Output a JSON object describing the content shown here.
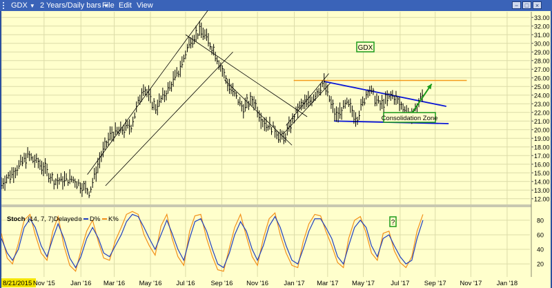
{
  "window": {
    "symbol": "GDX",
    "period": "2 Years/Daily bars",
    "menu": [
      "File",
      "Edit",
      "View"
    ],
    "buttons": [
      "minimize",
      "maximize",
      "close"
    ]
  },
  "stoch": {
    "label": "Stoch",
    "params": "(14, 7, 7)",
    "mode": "Delayed",
    "d_label": "D%",
    "k_label": "K%"
  },
  "annotations": {
    "gdx_label": "GDX",
    "consolidation_label": "Consolidation Zone",
    "question_label": "?"
  },
  "colors": {
    "background": "#ffffcc",
    "price": "#000000",
    "d_line": "#1e3fbf",
    "k_line": "#f29019",
    "wedge": "#0a16d6",
    "resistance": "#f39a1a",
    "arrow": "#1a9a1a",
    "label_border": "#1a9a1a"
  },
  "chart_data": [
    {
      "type": "line",
      "title": "",
      "series": [
        {
          "x": [
            "2015-08-21",
            "2015-09-15",
            "2015-10-05",
            "2015-10-30",
            "2015-11-20",
            "2015-12-20",
            "2016-01-19",
            "2016-02-05",
            "2016-02-24",
            "2016-03-10",
            "2016-03-30",
            "2016-04-20",
            "2016-05-10",
            "2016-05-31",
            "2016-06-20",
            "2016-07-10",
            "2016-07-29",
            "2016-08-20",
            "2016-09-10",
            "2016-10-07",
            "2016-10-25",
            "2016-11-10",
            "2016-12-01",
            "2016-12-15",
            "2017-01-10",
            "2017-02-01",
            "2017-02-22",
            "2017-03-15",
            "2017-04-04",
            "2017-04-20",
            "2017-05-10",
            "2017-05-30",
            "2017-06-20",
            "2017-07-10",
            "2017-07-25",
            "2017-08-11"
          ],
          "values": [
            13.8,
            15.4,
            17.0,
            15.8,
            14.0,
            14.3,
            12.8,
            16.5,
            19.5,
            19.8,
            20.5,
            25.0,
            22.5,
            24.5,
            26.8,
            30.5,
            31.5,
            29.0,
            25.5,
            22.5,
            23.5,
            21.0,
            20.0,
            18.8,
            22.5,
            23.5,
            25.5,
            21.5,
            23.0,
            21.3,
            24.8,
            22.8,
            24.0,
            22.3,
            21.5,
            24.3
          ]
        }
      ],
      "xticks": [
        "8/21/2015",
        "Nov '15",
        "Jan '16",
        "Mar '16",
        "May '16",
        "Jul '16",
        "Sep '16",
        "Nov '16",
        "Jan '17",
        "Mar '17",
        "May '17",
        "Jul '17",
        "Sep '17",
        "Nov '17",
        "Jan '18"
      ],
      "yticks": [
        12.0,
        13.0,
        14.0,
        15.0,
        16.0,
        17.0,
        18.0,
        19.0,
        20.0,
        21.0,
        22.0,
        23.0,
        24.0,
        25.0,
        26.0,
        27.0,
        28.0,
        29.0,
        30.0,
        31.0,
        32.0,
        33.0
      ],
      "ylim": [
        11.5,
        33.5
      ],
      "xlim": [
        "2015-08-21",
        "2018-02-10"
      ],
      "resistance_level": 25.7,
      "grid": true
    },
    {
      "type": "line",
      "title": "",
      "series": [
        {
          "name": "D%",
          "values": [
            55,
            35,
            25,
            40,
            70,
            82,
            70,
            45,
            30,
            55,
            75,
            55,
            28,
            15,
            30,
            55,
            70,
            55,
            35,
            30,
            45,
            60,
            78,
            88,
            85,
            70,
            55,
            40,
            60,
            80,
            62,
            40,
            25,
            55,
            78,
            82,
            65,
            40,
            20,
            15,
            35,
            60,
            78,
            65,
            40,
            25,
            45,
            72,
            85,
            70,
            45,
            25,
            20,
            40,
            65,
            82,
            82,
            70,
            55,
            30,
            20,
            45,
            70,
            80,
            70,
            45,
            30,
            55,
            60,
            45,
            30,
            20,
            25,
            55,
            80
          ]
        },
        {
          "name": "K%",
          "values": [
            62,
            28,
            20,
            48,
            80,
            88,
            60,
            35,
            25,
            65,
            85,
            45,
            18,
            10,
            38,
            65,
            80,
            50,
            28,
            25,
            52,
            70,
            88,
            92,
            88,
            60,
            45,
            32,
            72,
            88,
            55,
            30,
            18,
            65,
            86,
            88,
            55,
            30,
            12,
            10,
            42,
            70,
            88,
            58,
            30,
            18,
            55,
            82,
            90,
            60,
            35,
            18,
            15,
            50,
            75,
            88,
            86,
            65,
            45,
            22,
            15,
            55,
            80,
            85,
            62,
            35,
            25,
            62,
            65,
            38,
            22,
            15,
            30,
            65,
            88
          ]
        }
      ],
      "yticks": [
        20,
        40,
        60,
        80
      ],
      "ylim": [
        5,
        95
      ],
      "grid": true
    }
  ]
}
